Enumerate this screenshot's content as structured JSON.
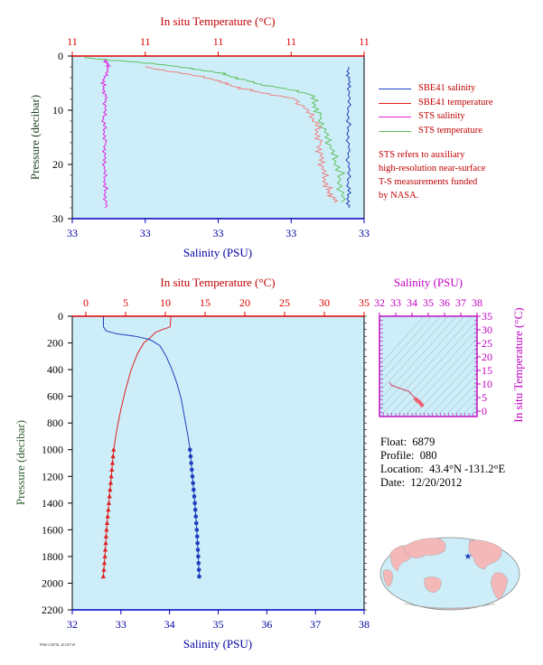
{
  "top_panel": {
    "xlabel_top": "In situ Temperature (°C)",
    "xlabel_bottom": "Salinity (PSU)",
    "ylabel": "Pressure (decibar)",
    "temp_ticks": [
      "11",
      "11",
      "11",
      "11",
      "11"
    ],
    "sal_ticks": [
      "33",
      "33",
      "33",
      "33",
      "33"
    ],
    "p_ticks": [
      "0",
      "10",
      "20",
      "30"
    ]
  },
  "legend": {
    "items": [
      {
        "label": "SBE41 salinity",
        "color": "#1f3fbf"
      },
      {
        "label": "SBE41 temperature",
        "color": "#e02020"
      },
      {
        "label": "STS salinity",
        "color": "#e020e0"
      },
      {
        "label": "STS temperature",
        "color": "#60c060"
      }
    ],
    "note": [
      "STS refers to auxiliary",
      "high-resolution near-surface",
      "T-S measurements funded",
      "by NASA."
    ]
  },
  "main_panel": {
    "xlabel_top": "In situ Temperature (°C)",
    "xlabel_bottom": "Salinity (PSU)",
    "ylabel": "Pressure (decibar)",
    "temp_ticks": [
      "0",
      "5",
      "10",
      "15",
      "20",
      "25",
      "30",
      "35"
    ],
    "sal_ticks": [
      "32",
      "33",
      "34",
      "35",
      "36",
      "37",
      "38"
    ],
    "p_ticks": [
      "0",
      "200",
      "400",
      "600",
      "800",
      "1000",
      "1200",
      "1400",
      "1600",
      "1800",
      "2000",
      "2200"
    ]
  },
  "ts_panel": {
    "xlabel": "Salinity (PSU)",
    "ylabel": "In situ Temperature (°C)",
    "sal_ticks": [
      "32",
      "33",
      "34",
      "35",
      "36",
      "37",
      "38"
    ],
    "temp_ticks": [
      "0",
      "5",
      "10",
      "15",
      "20",
      "25",
      "30",
      "35"
    ]
  },
  "info": {
    "float_label": "Float:",
    "float_value": "6879",
    "profile_label": "Profile:",
    "profile_value": "080",
    "location_label": "Location:",
    "location_value": "43.4°N  -131.2°E",
    "date_label": "Date:",
    "date_value": "12/20/2012"
  },
  "footer_text": "P080 C6879L 20130716",
  "colors": {
    "plot_bg": "#cdeef8",
    "temperature": "#e02020",
    "salinity": "#1f3fbf",
    "temp_axis": "#e00000",
    "sal_axis": "#0000c0",
    "pressure_axis": "#306030",
    "ts_axis": "#c000c0"
  },
  "chart_data": [
    {
      "type": "line",
      "title": "",
      "x_top_label": "In situ Temperature (°C)",
      "x_bottom_label": "Salinity (PSU)",
      "ylabel": "Pressure (decibar)",
      "temp_range": [
        10.0,
        11.2
      ],
      "sal_range": [
        32.6,
        34.0
      ],
      "pressure_range": [
        30,
        0
      ],
      "series": [
        {
          "name": "SBE41 salinity",
          "points": [
            [
              33.926,
              2
            ],
            [
              33.925,
              6
            ],
            [
              33.926,
              12
            ],
            [
              33.924,
              18
            ],
            [
              33.925,
              24
            ],
            [
              33.926,
              28
            ]
          ]
        },
        {
          "name": "STS salinity",
          "points": [
            [
              32.76,
              0.5
            ],
            [
              32.77,
              2
            ],
            [
              32.75,
              5
            ],
            [
              32.76,
              8
            ],
            [
              32.75,
              12
            ],
            [
              32.76,
              16
            ],
            [
              32.75,
              20
            ],
            [
              32.76,
              24
            ],
            [
              32.76,
              28
            ]
          ]
        },
        {
          "name": "STS temperature",
          "points": [
            [
              10.05,
              0.3
            ],
            [
              10.35,
              1.5
            ],
            [
              10.6,
              3
            ],
            [
              10.75,
              5
            ],
            [
              10.98,
              7
            ],
            [
              11.02,
              11
            ],
            [
              11.05,
              16
            ],
            [
              11.1,
              21
            ],
            [
              11.11,
              27
            ]
          ]
        },
        {
          "name": "SBE41 temperature",
          "points": [
            [
              10.3,
              2
            ],
            [
              10.55,
              4
            ],
            [
              10.7,
              6
            ],
            [
              10.92,
              8
            ],
            [
              11.0,
              12
            ],
            [
              11.02,
              16
            ],
            [
              11.02,
              20
            ],
            [
              11.05,
              24
            ],
            [
              11.08,
              27
            ]
          ]
        }
      ]
    },
    {
      "type": "line",
      "title": "",
      "x_top_label": "In situ Temperature (°C)",
      "x_bottom_label": "Salinity (PSU)",
      "ylabel": "Pressure (decibar)",
      "temp_range": [
        0,
        35
      ],
      "sal_range": [
        32,
        38
      ],
      "pressure_range": [
        2200,
        0
      ],
      "series": [
        {
          "name": "Temperature",
          "x_axis": "temperature",
          "points": [
            [
              10.7,
              0
            ],
            [
              10.6,
              80
            ],
            [
              9.6,
              100
            ],
            [
              8.8,
              120
            ],
            [
              8.1,
              160
            ],
            [
              7.3,
              200
            ],
            [
              6.5,
              280
            ],
            [
              5.7,
              400
            ],
            [
              5.0,
              550
            ],
            [
              4.4,
              700
            ],
            [
              3.9,
              850
            ],
            [
              3.5,
              1000
            ],
            [
              3.2,
              1200
            ],
            [
              2.9,
              1400
            ],
            [
              2.6,
              1600
            ],
            [
              2.4,
              1800
            ],
            [
              2.2,
              1950
            ]
          ]
        },
        {
          "name": "Salinity",
          "x_axis": "salinity",
          "points": [
            [
              32.64,
              0
            ],
            [
              32.64,
              80
            ],
            [
              32.7,
              110
            ],
            [
              32.9,
              130
            ],
            [
              33.3,
              150
            ],
            [
              33.6,
              175
            ],
            [
              33.8,
              220
            ],
            [
              33.93,
              300
            ],
            [
              34.05,
              400
            ],
            [
              34.15,
              500
            ],
            [
              34.24,
              620
            ],
            [
              34.32,
              780
            ],
            [
              34.38,
              900
            ],
            [
              34.42,
              1000
            ],
            [
              34.47,
              1200
            ],
            [
              34.52,
              1400
            ],
            [
              34.56,
              1600
            ],
            [
              34.59,
              1800
            ],
            [
              34.61,
              1950
            ]
          ]
        }
      ]
    },
    {
      "type": "scatter",
      "title": "",
      "xlabel": "Salinity (PSU)",
      "ylabel": "In situ Temperature (°C)",
      "xlim": [
        32,
        38
      ],
      "ylim": [
        -2,
        35
      ],
      "series": [
        {
          "name": "T-S profile",
          "points": [
            [
              32.64,
              10.7
            ],
            [
              32.7,
              9.6
            ],
            [
              33.3,
              8.3
            ],
            [
              33.8,
              7.3
            ],
            [
              34.05,
              5.7
            ],
            [
              34.15,
              5.0
            ],
            [
              34.24,
              4.4
            ],
            [
              34.32,
              3.9
            ],
            [
              34.42,
              3.5
            ],
            [
              34.5,
              3.0
            ],
            [
              34.56,
              2.6
            ],
            [
              34.61,
              2.2
            ]
          ]
        }
      ]
    }
  ]
}
